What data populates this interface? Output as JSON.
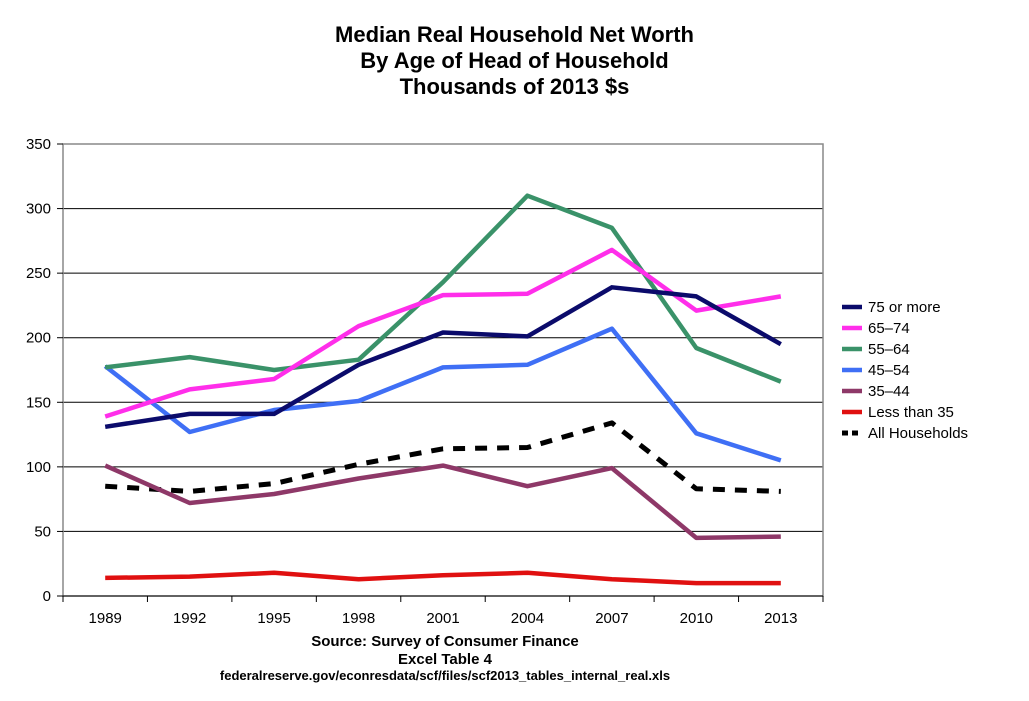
{
  "title_lines": [
    "Median Real Household Net Worth",
    "By Age of Head of Household",
    "Thousands of 2013 $s"
  ],
  "source_lines": [
    "Source: Survey of Consumer Finance",
    "Excel Table 4",
    "federalreserve.gov/econresdata/scf/files/scf2013_tables_internal_real.xls"
  ],
  "chart_data": {
    "type": "line",
    "categories": [
      "1989",
      "1992",
      "1995",
      "1998",
      "2001",
      "2004",
      "2007",
      "2010",
      "2013"
    ],
    "ylim": [
      0,
      350
    ],
    "yticks": [
      0,
      50,
      100,
      150,
      200,
      250,
      300,
      350
    ],
    "grid": "horizontal",
    "legend_position": "right",
    "series": [
      {
        "name": "75 or more",
        "color": "#0b0b6b",
        "dash": false,
        "values": [
          131,
          141,
          141,
          179,
          204,
          201,
          239,
          232,
          195
        ]
      },
      {
        "name": "65–74",
        "color": "#ff2eea",
        "dash": false,
        "values": [
          139,
          160,
          168,
          209,
          233,
          234,
          268,
          221,
          232
        ]
      },
      {
        "name": "55–64",
        "color": "#3a9269",
        "dash": false,
        "values": [
          177,
          185,
          175,
          183,
          243,
          310,
          285,
          192,
          166
        ]
      },
      {
        "name": "45–54",
        "color": "#3f6ff5",
        "dash": false,
        "values": [
          178,
          127,
          144,
          151,
          177,
          179,
          207,
          126,
          105
        ]
      },
      {
        "name": "35–44",
        "color": "#8e3868",
        "dash": false,
        "values": [
          101,
          72,
          79,
          91,
          101,
          85,
          99,
          45,
          46
        ]
      },
      {
        "name": "Less than 35",
        "color": "#e01010",
        "dash": false,
        "values": [
          14,
          15,
          18,
          13,
          16,
          18,
          13,
          10,
          10
        ]
      },
      {
        "name": "All Households",
        "color": "#000000",
        "dash": true,
        "values": [
          85,
          81,
          87,
          102,
          114,
          115,
          134,
          83,
          81
        ]
      }
    ]
  }
}
